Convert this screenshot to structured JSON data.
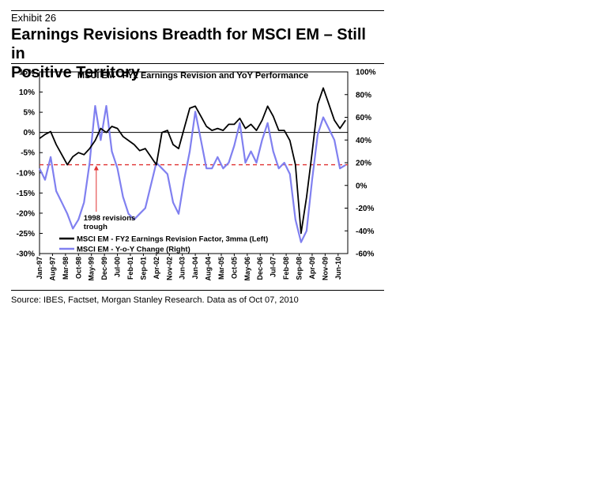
{
  "exhibit": {
    "label": "Exhibit 26",
    "title_line1": "Earnings Revisions Breadth for MSCI EM – Still in",
    "title_line2": "Positive Territory"
  },
  "source": "Source: IBES, Factset, Morgan Stanley Research. Data as of Oct 07, 2010",
  "chart_data": {
    "type": "line",
    "title": "MSCI EM - FY2 Earnings Revision and YoY Performance",
    "left_axis": {
      "ticks": [
        "15%",
        "10%",
        "5%",
        "0%",
        "-5%",
        "-10%",
        "-15%",
        "-20%",
        "-25%",
        "-30%"
      ],
      "range": [
        -30,
        15
      ]
    },
    "right_axis": {
      "ticks": [
        "100%",
        "80%",
        "60%",
        "40%",
        "20%",
        "0%",
        "-20%",
        "-40%",
        "-60%"
      ],
      "range": [
        -60,
        100
      ]
    },
    "x_labels": [
      "Jan-97",
      "Aug-97",
      "Mar-98",
      "Oct-98",
      "May-99",
      "Dec-99",
      "Jul-00",
      "Feb-01",
      "Sep-01",
      "Apr-02",
      "Nov-02",
      "Jun-03",
      "Jan-04",
      "Aug-04",
      "Mar-05",
      "Oct-05",
      "May-06",
      "Dec-06",
      "Jul-07",
      "Feb-08",
      "Sep-08",
      "Apr-09",
      "Nov-09",
      "Jun-10"
    ],
    "reference_line": {
      "value": -8,
      "axis": "left",
      "color": "#e03030",
      "style": "dashed"
    },
    "annotation": {
      "line1": "1998 revisions",
      "line2": "trough"
    },
    "legend": {
      "placement": "bottom-center",
      "entries": [
        "MSCI EM - FY2 Earnings Revision Factor, 3mma (Left)",
        "MSCI EM - Y-o-Y Change (Right)"
      ]
    },
    "colors": {
      "revision": "#000000",
      "yoy": "#8080f0",
      "reference": "#e03030"
    },
    "series": [
      {
        "name": "MSCI EM - FY2 Earnings Revision Factor, 3mma (Left)",
        "axis": "left",
        "x": [
          1997.0,
          1997.25,
          1997.5,
          1997.75,
          1998.0,
          1998.25,
          1998.5,
          1998.75,
          1999.0,
          1999.25,
          1999.5,
          1999.75,
          2000.0,
          2000.25,
          2000.5,
          2000.75,
          2001.0,
          2001.25,
          2001.5,
          2001.75,
          2002.0,
          2002.25,
          2002.5,
          2002.75,
          2003.0,
          2003.25,
          2003.5,
          2003.75,
          2004.0,
          2004.25,
          2004.5,
          2004.75,
          2005.0,
          2005.25,
          2005.5,
          2005.75,
          2006.0,
          2006.25,
          2006.5,
          2006.75,
          2007.0,
          2007.25,
          2007.5,
          2007.75,
          2008.0,
          2008.25,
          2008.5,
          2008.75,
          2009.0,
          2009.25,
          2009.5,
          2009.75,
          2010.0,
          2010.25,
          2010.5,
          2010.75
        ],
        "values": [
          -1.5,
          -0.5,
          0.2,
          -3,
          -5.5,
          -8,
          -6,
          -5,
          -5.5,
          -4,
          -2,
          1,
          0,
          1.5,
          1,
          -1,
          -2,
          -3,
          -4.5,
          -4,
          -6,
          -8,
          0,
          0.5,
          -3,
          -4,
          1,
          6,
          6.5,
          4,
          1.5,
          0.5,
          1,
          0.5,
          2,
          2,
          3.5,
          1,
          2,
          0.5,
          3,
          6.5,
          4,
          0.5,
          0.5,
          -2,
          -8,
          -25,
          -16,
          -5,
          7,
          11,
          7,
          3,
          1,
          3
        ]
      },
      {
        "name": "MSCI EM - Y-o-Y Change (Right)",
        "axis": "right",
        "x": [
          1997.0,
          1997.25,
          1997.5,
          1997.75,
          1998.0,
          1998.25,
          1998.5,
          1998.75,
          1999.0,
          1999.25,
          1999.5,
          1999.75,
          2000.0,
          2000.25,
          2000.5,
          2000.75,
          2001.0,
          2001.25,
          2001.5,
          2001.75,
          2002.0,
          2002.25,
          2002.5,
          2002.75,
          2003.0,
          2003.25,
          2003.5,
          2003.75,
          2004.0,
          2004.25,
          2004.5,
          2004.75,
          2005.0,
          2005.25,
          2005.5,
          2005.75,
          2006.0,
          2006.25,
          2006.5,
          2006.75,
          2007.0,
          2007.25,
          2007.5,
          2007.75,
          2008.0,
          2008.25,
          2008.5,
          2008.75,
          2009.0,
          2009.25,
          2009.5,
          2009.75,
          2010.0,
          2010.25,
          2010.5,
          2010.75
        ],
        "values": [
          15,
          5,
          25,
          -5,
          -15,
          -25,
          -38,
          -30,
          -15,
          20,
          70,
          40,
          70,
          30,
          15,
          -10,
          -25,
          -30,
          -25,
          -20,
          0,
          20,
          15,
          10,
          -15,
          -25,
          5,
          30,
          65,
          40,
          15,
          15,
          25,
          15,
          20,
          35,
          55,
          20,
          30,
          20,
          40,
          55,
          30,
          15,
          20,
          10,
          -30,
          -50,
          -40,
          5,
          45,
          60,
          50,
          40,
          15,
          18
        ]
      }
    ]
  }
}
